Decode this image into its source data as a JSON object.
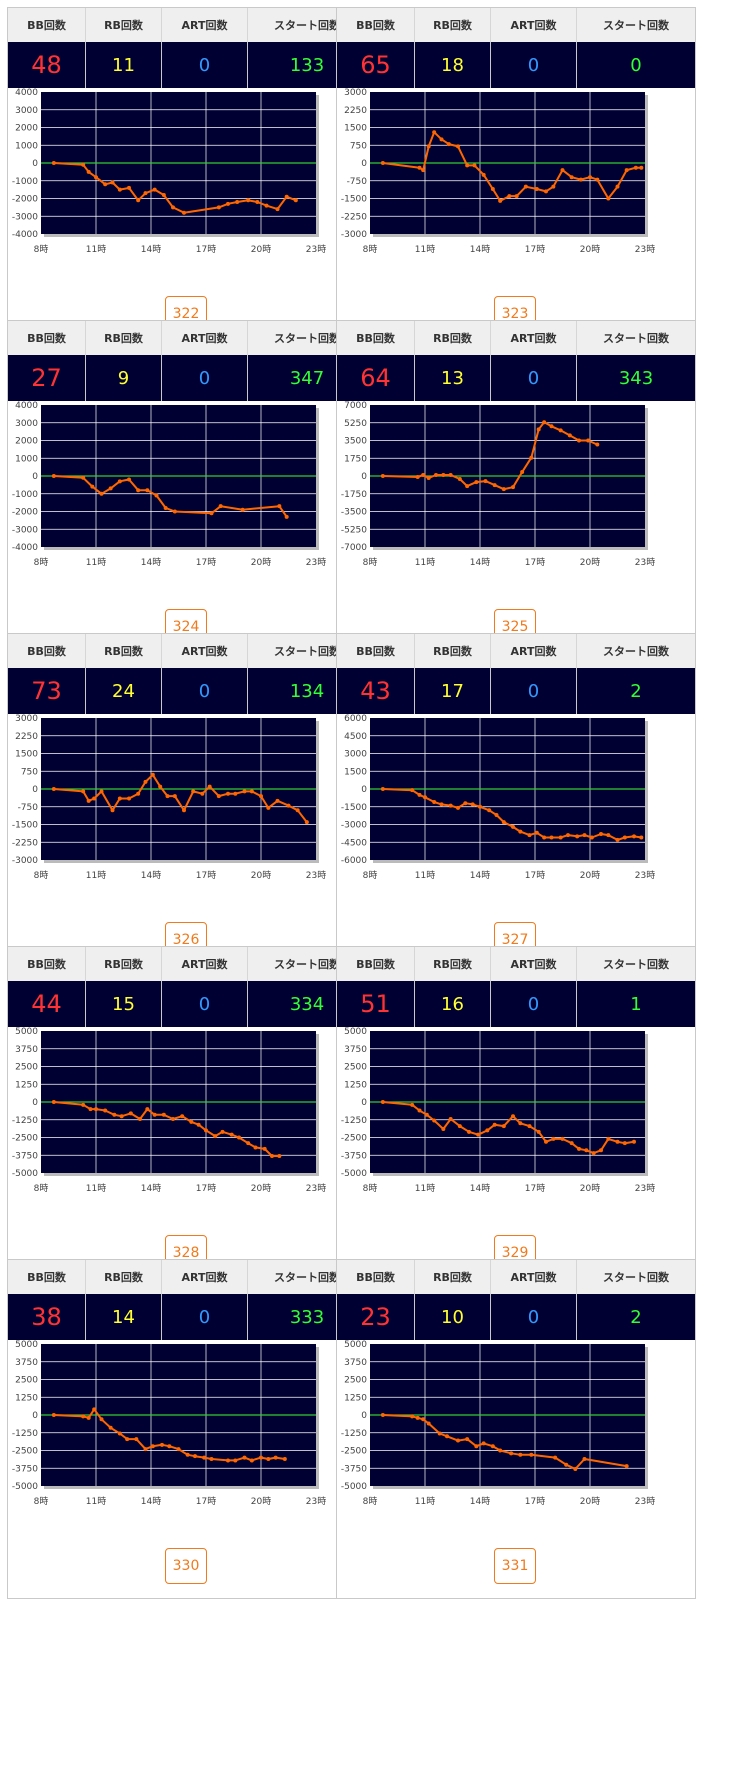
{
  "colors": {
    "plot_bg": "#000033",
    "grid": "#ffffff",
    "zero_line": "#33cc33",
    "line": "#ff6600",
    "bb": "#ff3333",
    "rb": "#ffff33",
    "art": "#3399ff",
    "start": "#33ff33",
    "button": "#f07a1c"
  },
  "headers": {
    "bb": "BB回数",
    "rb": "RB回数",
    "art": "ART回数",
    "start": "スタート回数"
  },
  "x_ticks": [
    "8時",
    "11時",
    "14時",
    "17時",
    "20時",
    "23時"
  ],
  "machines": [
    {
      "id": "322",
      "bb": "48",
      "rb": "11",
      "art": "0",
      "start": "133"
    },
    {
      "id": "323",
      "bb": "65",
      "rb": "18",
      "art": "0",
      "start": "0"
    },
    {
      "id": "324",
      "bb": "27",
      "rb": "9",
      "art": "0",
      "start": "347"
    },
    {
      "id": "325",
      "bb": "64",
      "rb": "13",
      "art": "0",
      "start": "343"
    },
    {
      "id": "326",
      "bb": "73",
      "rb": "24",
      "art": "0",
      "start": "134"
    },
    {
      "id": "327",
      "bb": "43",
      "rb": "17",
      "art": "0",
      "start": "2"
    },
    {
      "id": "328",
      "bb": "44",
      "rb": "15",
      "art": "0",
      "start": "334"
    },
    {
      "id": "329",
      "bb": "51",
      "rb": "16",
      "art": "0",
      "start": "1"
    },
    {
      "id": "330",
      "bb": "38",
      "rb": "14",
      "art": "0",
      "start": "333"
    },
    {
      "id": "331",
      "bb": "23",
      "rb": "10",
      "art": "0",
      "start": "2"
    }
  ],
  "chart_data": [
    {
      "type": "line",
      "title": "",
      "xlabel": "",
      "ylabel": "",
      "xlim": [
        8,
        23
      ],
      "ylim": [
        -4000,
        4000
      ],
      "y_ticks": [
        "4000",
        "3000",
        "2000",
        "1000",
        "0",
        "-1000",
        "-2000",
        "-3000",
        "-4000"
      ],
      "x": [
        8.7,
        10.3,
        10.6,
        11.0,
        11.5,
        11.9,
        12.3,
        12.8,
        13.3,
        13.7,
        14.2,
        14.7,
        15.2,
        15.8,
        17.7,
        18.2,
        18.7,
        19.3,
        19.8,
        20.3,
        20.9,
        21.4,
        21.9
      ],
      "values": [
        0,
        -100,
        -500,
        -800,
        -1200,
        -1100,
        -1500,
        -1400,
        -2100,
        -1700,
        -1500,
        -1800,
        -2500,
        -2800,
        -2500,
        -2300,
        -2200,
        -2100,
        -2200,
        -2400,
        -2600,
        -1900,
        -2100
      ]
    },
    {
      "type": "line",
      "title": "",
      "xlabel": "",
      "ylabel": "",
      "xlim": [
        8,
        23
      ],
      "ylim": [
        -3000,
        3000
      ],
      "y_ticks": [
        "3000",
        "2250",
        "1500",
        "750",
        "0",
        "-750",
        "-1500",
        "-2250",
        "-3000"
      ],
      "x": [
        8.7,
        10.7,
        10.9,
        11.2,
        11.5,
        11.9,
        12.3,
        12.8,
        13.3,
        13.7,
        14.2,
        14.7,
        15.1,
        15.6,
        16.0,
        16.5,
        17.1,
        17.6,
        18.0,
        18.5,
        19.0,
        19.5,
        20.0,
        20.4,
        21.0,
        21.5,
        22.0,
        22.5,
        22.8
      ],
      "values": [
        0,
        -200,
        -300,
        700,
        1300,
        1000,
        800,
        700,
        -100,
        -100,
        -500,
        -1100,
        -1600,
        -1400,
        -1400,
        -1000,
        -1100,
        -1200,
        -1000,
        -300,
        -600,
        -700,
        -600,
        -700,
        -1500,
        -1000,
        -300,
        -200,
        -200
      ]
    },
    {
      "type": "line",
      "title": "",
      "xlabel": "",
      "ylabel": "",
      "xlim": [
        8,
        23
      ],
      "ylim": [
        -4000,
        4000
      ],
      "y_ticks": [
        "4000",
        "3000",
        "2000",
        "1000",
        "0",
        "-1000",
        "-2000",
        "-3000",
        "-4000"
      ],
      "x": [
        8.7,
        10.3,
        10.8,
        11.3,
        11.8,
        12.3,
        12.8,
        13.3,
        13.8,
        14.3,
        14.8,
        15.3,
        17.3,
        17.8,
        19.0,
        21.0,
        21.4
      ],
      "values": [
        0,
        -100,
        -600,
        -1000,
        -700,
        -300,
        -200,
        -800,
        -800,
        -1100,
        -1800,
        -2000,
        -2100,
        -1700,
        -1900,
        -1700,
        -2300
      ]
    },
    {
      "type": "line",
      "title": "",
      "xlabel": "",
      "ylabel": "",
      "xlim": [
        8,
        23
      ],
      "ylim": [
        -7000,
        7000
      ],
      "y_ticks": [
        "7000",
        "5250",
        "3500",
        "1750",
        "0",
        "-1750",
        "-3500",
        "-5250",
        "-7000"
      ],
      "x": [
        8.7,
        10.6,
        10.9,
        11.2,
        11.6,
        12.0,
        12.4,
        12.9,
        13.3,
        13.8,
        14.3,
        14.8,
        15.3,
        15.8,
        16.3,
        16.8,
        17.2,
        17.5,
        17.9,
        18.4,
        18.9,
        19.4,
        19.9,
        20.4
      ],
      "values": [
        0,
        -100,
        100,
        -200,
        100,
        100,
        100,
        -300,
        -1000,
        -600,
        -500,
        -900,
        -1300,
        -1100,
        400,
        1800,
        4600,
        5300,
        4900,
        4500,
        4000,
        3500,
        3500,
        3100
      ]
    },
    {
      "type": "line",
      "title": "",
      "xlabel": "",
      "ylabel": "",
      "xlim": [
        8,
        23
      ],
      "ylim": [
        -3000,
        3000
      ],
      "y_ticks": [
        "3000",
        "2250",
        "1500",
        "750",
        "0",
        "-750",
        "-1500",
        "-2250",
        "-3000"
      ],
      "x": [
        8.7,
        10.3,
        10.6,
        10.9,
        11.3,
        11.9,
        12.3,
        12.8,
        13.3,
        13.7,
        14.1,
        14.5,
        14.9,
        15.3,
        15.8,
        16.3,
        16.8,
        17.2,
        17.7,
        18.2,
        18.6,
        19.1,
        19.5,
        20.0,
        20.4,
        20.9,
        21.5,
        22.0,
        22.5
      ],
      "values": [
        0,
        -100,
        -500,
        -400,
        -100,
        -900,
        -400,
        -400,
        -200,
        300,
        600,
        100,
        -300,
        -300,
        -900,
        -100,
        -200,
        100,
        -300,
        -200,
        -200,
        -100,
        -100,
        -300,
        -800,
        -500,
        -700,
        -900,
        -1400
      ]
    },
    {
      "type": "line",
      "title": "",
      "xlabel": "",
      "ylabel": "",
      "xlim": [
        8,
        23
      ],
      "ylim": [
        -6000,
        6000
      ],
      "y_ticks": [
        "6000",
        "4500",
        "3000",
        "1500",
        "0",
        "-1500",
        "-3000",
        "-4500",
        "-6000"
      ],
      "x": [
        8.7,
        10.3,
        10.7,
        11.0,
        11.5,
        11.9,
        12.4,
        12.8,
        13.2,
        13.6,
        14.0,
        14.5,
        14.9,
        15.3,
        15.8,
        16.2,
        16.7,
        17.1,
        17.5,
        17.9,
        18.4,
        18.8,
        19.3,
        19.7,
        20.1,
        20.6,
        21.0,
        21.5,
        21.9,
        22.4,
        22.8
      ],
      "values": [
        0,
        -100,
        -500,
        -700,
        -1100,
        -1300,
        -1400,
        -1600,
        -1200,
        -1300,
        -1500,
        -1800,
        -2200,
        -2800,
        -3200,
        -3600,
        -3900,
        -3700,
        -4100,
        -4100,
        -4100,
        -3900,
        -4000,
        -3900,
        -4100,
        -3800,
        -3900,
        -4300,
        -4100,
        -4000,
        -4100
      ]
    },
    {
      "type": "line",
      "title": "",
      "xlabel": "",
      "ylabel": "",
      "xlim": [
        8,
        23
      ],
      "ylim": [
        -5000,
        5000
      ],
      "y_ticks": [
        "5000",
        "3750",
        "2500",
        "1250",
        "0",
        "-1250",
        "-2500",
        "-3750",
        "-5000"
      ],
      "x": [
        8.7,
        10.3,
        10.7,
        11.0,
        11.5,
        12.0,
        12.4,
        12.9,
        13.4,
        13.8,
        14.2,
        14.7,
        15.2,
        15.7,
        16.2,
        16.6,
        17.0,
        17.5,
        17.9,
        18.4,
        18.8,
        19.3,
        19.7,
        20.2,
        20.6,
        21.0
      ],
      "values": [
        0,
        -200,
        -500,
        -500,
        -600,
        -900,
        -1000,
        -800,
        -1200,
        -500,
        -900,
        -900,
        -1200,
        -1000,
        -1400,
        -1600,
        -2000,
        -2400,
        -2100,
        -2300,
        -2500,
        -2900,
        -3200,
        -3300,
        -3800,
        -3800
      ]
    },
    {
      "type": "line",
      "title": "",
      "xlabel": "",
      "ylabel": "",
      "xlim": [
        8,
        23
      ],
      "ylim": [
        -5000,
        5000
      ],
      "y_ticks": [
        "5000",
        "3750",
        "2500",
        "1250",
        "0",
        "-1250",
        "-2500",
        "-3750",
        "-5000"
      ],
      "x": [
        8.7,
        10.3,
        10.7,
        11.1,
        11.5,
        12.0,
        12.4,
        12.9,
        13.4,
        13.9,
        14.4,
        14.8,
        15.3,
        15.8,
        16.2,
        16.7,
        17.2,
        17.6,
        18.0,
        18.5,
        19.0,
        19.4,
        19.8,
        20.2,
        20.6,
        21.0,
        21.5,
        21.9,
        22.4
      ],
      "values": [
        0,
        -200,
        -600,
        -900,
        -1300,
        -1900,
        -1200,
        -1700,
        -2100,
        -2300,
        -2000,
        -1600,
        -1700,
        -1000,
        -1500,
        -1700,
        -2100,
        -2800,
        -2600,
        -2600,
        -2900,
        -3300,
        -3400,
        -3600,
        -3400,
        -2600,
        -2800,
        -2900,
        -2800
      ]
    },
    {
      "type": "line",
      "title": "",
      "xlabel": "",
      "ylabel": "",
      "xlim": [
        8,
        23
      ],
      "ylim": [
        -5000,
        5000
      ],
      "y_ticks": [
        "5000",
        "3750",
        "2500",
        "1250",
        "0",
        "-1250",
        "-2500",
        "-3750",
        "-5000"
      ],
      "x": [
        8.7,
        10.3,
        10.6,
        10.9,
        11.3,
        11.8,
        12.3,
        12.7,
        13.2,
        13.7,
        14.1,
        14.6,
        15.0,
        15.5,
        16.0,
        16.4,
        16.9,
        17.3,
        18.2,
        18.6,
        19.1,
        19.5,
        20.0,
        20.4,
        20.8,
        21.3
      ],
      "values": [
        0,
        -100,
        -200,
        400,
        -300,
        -900,
        -1300,
        -1700,
        -1700,
        -2400,
        -2200,
        -2100,
        -2200,
        -2400,
        -2800,
        -2900,
        -3000,
        -3100,
        -3200,
        -3200,
        -3000,
        -3200,
        -3000,
        -3100,
        -3000,
        -3100
      ]
    },
    {
      "type": "line",
      "title": "",
      "xlabel": "",
      "ylabel": "",
      "xlim": [
        8,
        23
      ],
      "ylim": [
        -5000,
        5000
      ],
      "y_ticks": [
        "5000",
        "3750",
        "2500",
        "1250",
        "0",
        "-1250",
        "-2500",
        "-3750",
        "-5000"
      ],
      "x": [
        8.7,
        10.3,
        10.6,
        10.9,
        11.2,
        11.8,
        12.2,
        12.8,
        13.3,
        13.8,
        14.2,
        14.7,
        15.1,
        15.7,
        16.2,
        16.8,
        18.1,
        18.7,
        19.2,
        19.7,
        22.0
      ],
      "values": [
        0,
        -100,
        -200,
        -300,
        -600,
        -1300,
        -1500,
        -1800,
        -1700,
        -2200,
        -2000,
        -2200,
        -2500,
        -2700,
        -2800,
        -2800,
        -3000,
        -3500,
        -3800,
        -3100,
        -3600
      ]
    }
  ]
}
